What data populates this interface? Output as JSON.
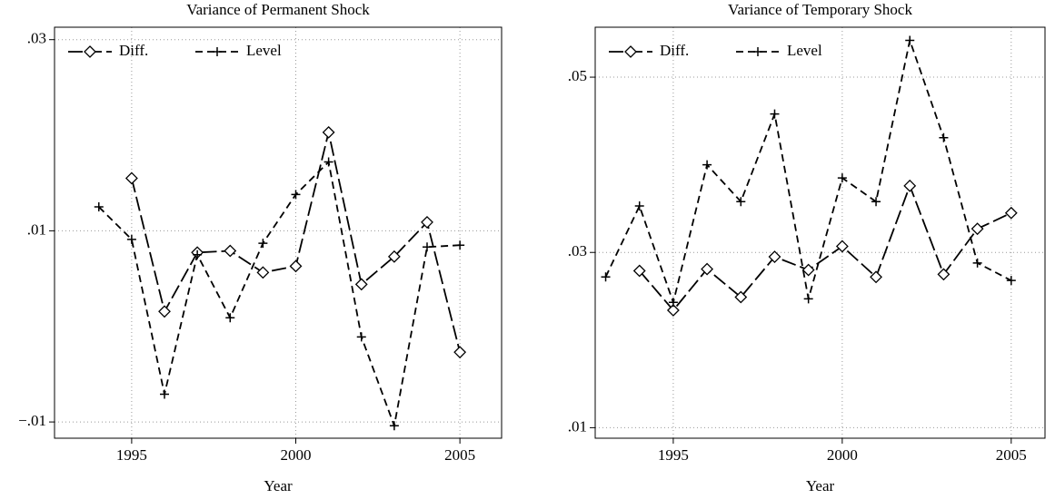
{
  "chart_data": [
    {
      "type": "line",
      "title": "Variance of Permanent Shock",
      "x_label": "Year",
      "x": [
        1994,
        1995,
        1996,
        1997,
        1998,
        1999,
        2000,
        2001,
        2002,
        2003,
        2004,
        2005
      ],
      "series": [
        {
          "name": "Diff.",
          "color": "#000000",
          "marker": "diamond",
          "dash": "long",
          "values": [
            null,
            0.0155,
            0.00156,
            0.00773,
            0.0079,
            0.00564,
            0.0063,
            0.0203,
            0.0044,
            0.0073,
            0.0109,
            -0.0027
          ]
        },
        {
          "name": "Level",
          "color": "#000000",
          "marker": "plus",
          "dash": "short",
          "values": [
            0.0125,
            0.0091,
            -0.0071,
            0.0075,
            0.0009,
            0.0087,
            0.0138,
            0.0172,
            -0.0011,
            -0.0104,
            0.0083,
            0.0085
          ]
        }
      ],
      "xlim": [
        1992.65,
        2006.27
      ],
      "xticks": [
        1995,
        2000,
        2005
      ],
      "ylim": [
        -0.0117,
        0.0313
      ],
      "yticks": [
        {
          "value": -0.01,
          "label": "−.01"
        },
        {
          "value": 0.01,
          "label": ".01"
        },
        {
          "value": 0.03,
          "label": ".03"
        }
      ],
      "grid": true,
      "legend": "top-left"
    },
    {
      "type": "line",
      "title": "Variance of Temporary Shock",
      "x_label": "Year",
      "x": [
        1993,
        1994,
        1995,
        1996,
        1997,
        1998,
        1999,
        2000,
        2001,
        2002,
        2003,
        2004,
        2005
      ],
      "series": [
        {
          "name": "Diff.",
          "color": "#000000",
          "marker": "diamond",
          "dash": "long",
          "values": [
            null,
            0.0279,
            0.0234,
            0.0281,
            0.0249,
            0.0295,
            0.028,
            0.0307,
            0.0272,
            0.0376,
            0.0275,
            0.0327,
            0.0345
          ]
        },
        {
          "name": "Level",
          "color": "#000000",
          "marker": "plus",
          "dash": "short",
          "values": [
            0.0272,
            0.0353,
            0.0243,
            0.04,
            0.0358,
            0.0458,
            0.0247,
            0.0385,
            0.0358,
            0.0542,
            0.0431,
            0.0288,
            0.0268
          ]
        }
      ],
      "xlim": [
        1992.69,
        2006.0
      ],
      "xticks": [
        1995,
        2000,
        2005
      ],
      "ylim": [
        0.0088,
        0.0557
      ],
      "yticks": [
        {
          "value": 0.01,
          "label": ".01"
        },
        {
          "value": 0.03,
          "label": ".03"
        },
        {
          "value": 0.05,
          "label": ".05"
        }
      ],
      "grid": true,
      "legend": "top-left"
    }
  ]
}
